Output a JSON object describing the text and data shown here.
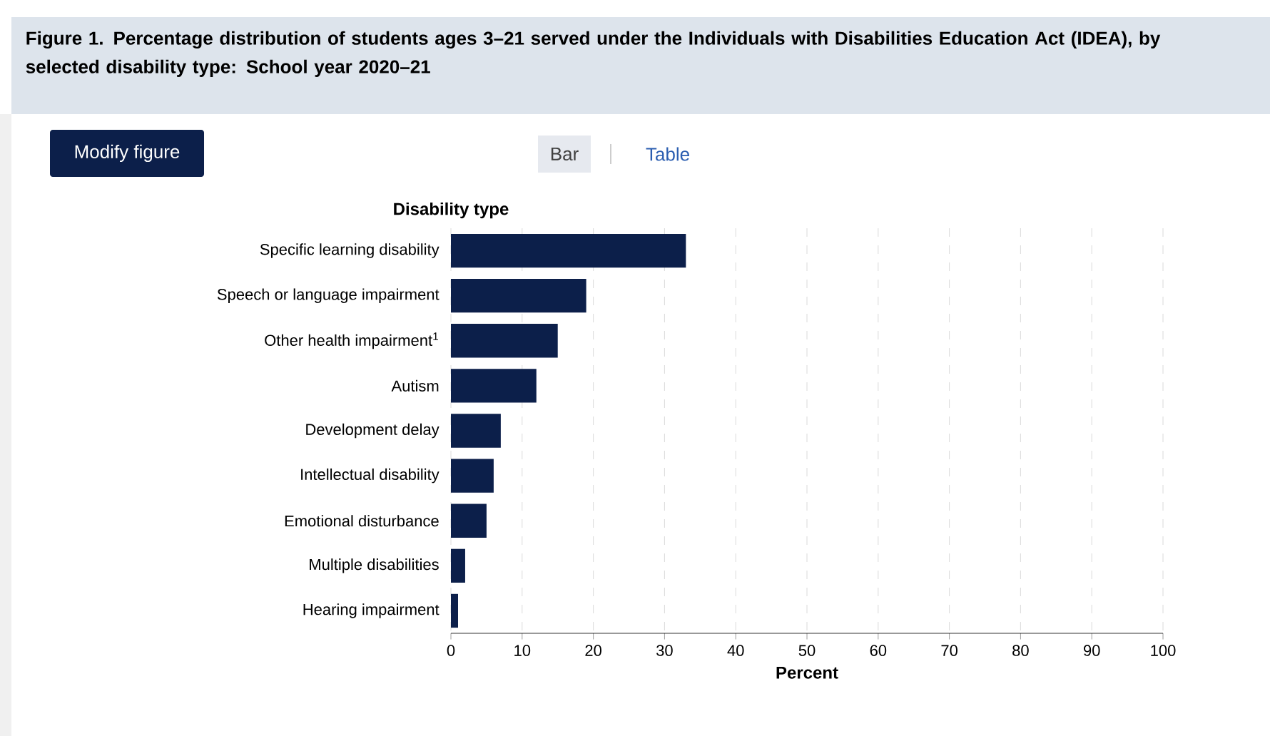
{
  "chart_data": {
    "type": "bar",
    "orientation": "horizontal",
    "title": "Figure 1. Percentage distribution of students ages 3–21 served under the Individuals with Disabilities Education Act (IDEA), by selected disability type: School year 2020–21",
    "ylabel": "Disability type",
    "xlabel": "Percent",
    "categories": [
      "Specific learning disability",
      "Speech or language impairment",
      "Other health impairment$^{1}$",
      "Autism",
      "Development delay",
      "Intellectual disability",
      "Emotional disturbance",
      "Multiple disabilities",
      "Hearing impairment"
    ],
    "values": [
      33,
      19,
      15,
      12,
      7,
      6,
      5,
      2,
      1
    ],
    "color": "#0c1f4a",
    "xlim": [
      0,
      100
    ],
    "xticks": [
      0,
      10,
      20,
      30,
      40,
      50,
      60,
      70,
      80,
      90,
      100
    ],
    "grid": "x",
    "annotations": [
      "Modify figure",
      "Bar",
      "Table"
    ]
  }
}
